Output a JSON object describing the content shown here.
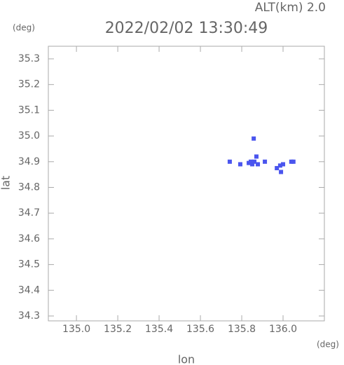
{
  "chart_data": {
    "type": "scatter",
    "title": "2022/02/02 13:30:49",
    "subtitle": "ALT(km) 2.0",
    "y_unit": "(deg)",
    "x_unit": "(deg)",
    "xlabel": "lon",
    "ylabel": "lat",
    "color": "#4a55ee",
    "x": [
      135.858,
      135.742,
      135.793,
      135.844,
      135.861,
      135.871,
      135.878,
      135.851,
      135.834,
      135.912,
      135.97,
      135.986,
      136.0,
      135.99,
      136.04,
      136.05
    ],
    "values": [
      34.99,
      34.9,
      34.89,
      34.9,
      34.9,
      34.92,
      34.89,
      34.89,
      34.895,
      34.9,
      34.875,
      34.885,
      34.89,
      34.86,
      34.9,
      34.9
    ],
    "xlim": [
      134.864,
      136.2
    ],
    "ylim": [
      34.281,
      35.349
    ],
    "xticks": [
      {
        "value": 135,
        "label": "135.0"
      },
      135.2,
      135.4,
      135.6,
      135.8,
      {
        "value": 136,
        "label": "136.0"
      }
    ],
    "yticks": [
      35.3,
      35.2,
      35.1,
      {
        "value": 35,
        "label": "35.0"
      },
      34.9,
      34.8,
      34.7,
      34.6,
      34.5,
      34.4,
      34.3
    ]
  }
}
